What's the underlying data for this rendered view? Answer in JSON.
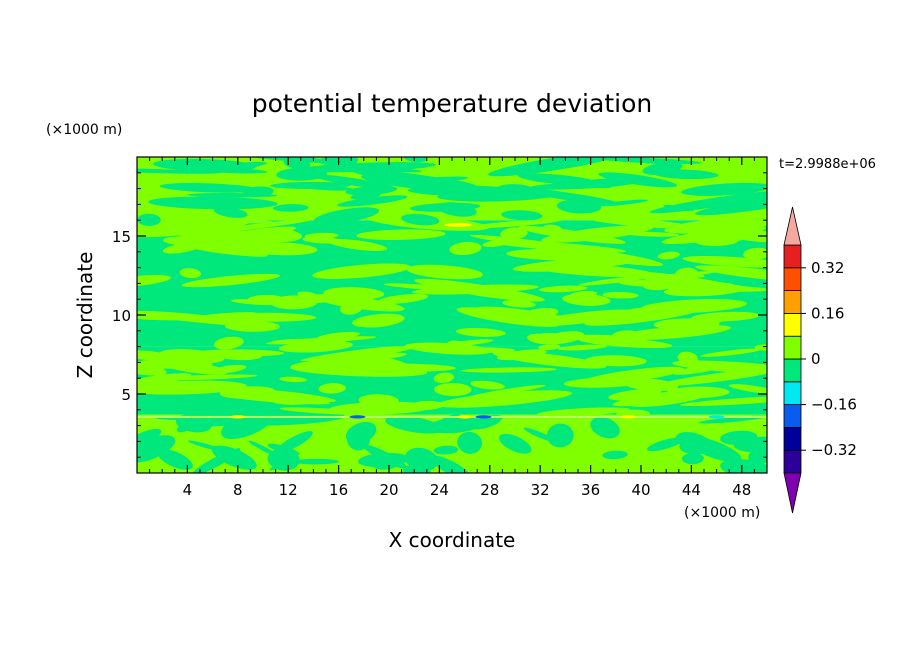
{
  "chart_data": {
    "type": "heatmap",
    "title": "potential temperature deviation",
    "xlabel": "X coordinate",
    "ylabel": "Z coordinate",
    "x_unit": "(×1000 m)",
    "y_unit": "(×1000 m)",
    "time_label": "t=2.9988e+06",
    "xlim": [
      0,
      50
    ],
    "ylim": [
      0,
      20
    ],
    "x_ticks": [
      4,
      8,
      12,
      16,
      20,
      24,
      28,
      32,
      36,
      40,
      44,
      48
    ],
    "y_ticks": [
      5,
      10,
      15
    ],
    "colorbar": {
      "levels": [
        -0.4,
        -0.32,
        -0.24,
        -0.16,
        -0.08,
        0,
        0.08,
        0.16,
        0.24,
        0.32,
        0.4
      ],
      "tick_labels": [
        "0.32",
        "0.16",
        "0",
        "−0.16",
        "−0.32"
      ],
      "tick_values": [
        0.32,
        0.16,
        0,
        -0.16,
        -0.32
      ],
      "colors": [
        "#2e009a",
        "#00009a",
        "#0a5cf0",
        "#00e8f0",
        "#00e87c",
        "#80ff00",
        "#ffff00",
        "#ffa000",
        "#ff5000",
        "#e62020"
      ],
      "under_color": "#7e00b0",
      "over_color": "#f4a8a0"
    },
    "bands": [
      {
        "z": [
          0.0,
          3.3
        ],
        "dominant": "#80ff00",
        "secondary": "#00e87c"
      },
      {
        "z": [
          3.3,
          3.7
        ],
        "dominant": "#80ff00",
        "secondary": "#00e87c"
      },
      {
        "z": [
          3.7,
          8.0
        ],
        "dominant": "#00e87c",
        "secondary": "#80ff00"
      },
      {
        "z": [
          8.0,
          16.0
        ],
        "dominant": "#00e87c",
        "secondary": "#80ff00"
      },
      {
        "z": [
          16.0,
          20.0
        ],
        "dominant": "#80ff00",
        "secondary": "#00e87c"
      }
    ]
  }
}
